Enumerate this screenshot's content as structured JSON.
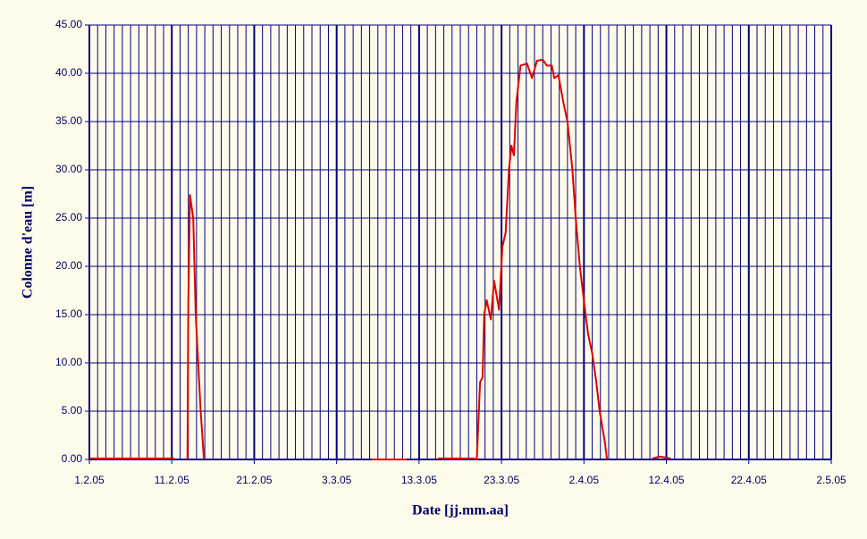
{
  "chart_data": {
    "type": "line",
    "x_label": "Date [jj.mm.aa]",
    "y_label": "Colonne d'eau [m]",
    "xlim": [
      0,
      90
    ],
    "xticks": [
      {
        "value": 0,
        "label": "1.2.05"
      },
      {
        "value": 10,
        "label": "11.2.05"
      },
      {
        "value": 20,
        "label": "21.2.05"
      },
      {
        "value": 30,
        "label": "3.3.05"
      },
      {
        "value": 40,
        "label": "13.3.05"
      },
      {
        "value": 50,
        "label": "23.3.05"
      },
      {
        "value": 60,
        "label": "2.4.05"
      },
      {
        "value": 70,
        "label": "12.4.05"
      },
      {
        "value": 80,
        "label": "22.4.05"
      },
      {
        "value": 90,
        "label": "2.5.05"
      }
    ],
    "x_minor_grid_step": 1,
    "ylim": [
      0,
      45
    ],
    "yticks": [
      {
        "value": 0,
        "label": "0.00"
      },
      {
        "value": 5,
        "label": "5.00"
      },
      {
        "value": 10,
        "label": "10.00"
      },
      {
        "value": 15,
        "label": "15.00"
      },
      {
        "value": 20,
        "label": "20.00"
      },
      {
        "value": 25,
        "label": "25.00"
      },
      {
        "value": 30,
        "label": "30.00"
      },
      {
        "value": 35,
        "label": "35.00"
      },
      {
        "value": 40,
        "label": "40.00"
      },
      {
        "value": 45,
        "label": "45.00"
      }
    ],
    "grid": true,
    "grid_color": "#000080",
    "x": [
      0,
      10.3,
      11,
      11.9,
      12.0,
      12.2,
      12.6,
      12.9,
      13.2,
      13.5,
      13.9,
      14.5,
      34.2,
      38.5,
      40,
      42.3,
      46.6,
      47.0,
      47.4,
      47.7,
      47.9,
      48.2,
      48.7,
      49.1,
      49.7,
      50.1,
      50.5,
      50.9,
      51.2,
      51.5,
      51.8,
      52.3,
      53.1,
      53.7,
      54.3,
      55.0,
      55.5,
      56.1,
      56.4,
      56.9,
      57.5,
      58.0,
      58.6,
      59.0,
      59.5,
      60.2,
      60.5,
      61.0,
      61.5,
      61.9,
      62.5,
      62.8,
      65,
      68.3,
      69.2,
      70.5
    ],
    "series": [
      {
        "color": "#e00000",
        "values": [
          0.1,
          0.1,
          null,
          0,
          16,
          27.4,
          25,
          15,
          10,
          5,
          0,
          null,
          0,
          0,
          null,
          0.1,
          0.1,
          0,
          8,
          8.5,
          15,
          16.5,
          14.5,
          18.5,
          15.5,
          22,
          23.5,
          30,
          32.5,
          31.5,
          37,
          40.8,
          41,
          39.5,
          41.3,
          41.4,
          40.8,
          40.8,
          39.5,
          39.8,
          37,
          35,
          30,
          25,
          20,
          15,
          13,
          11,
          8,
          5,
          2,
          0,
          null,
          0.1,
          0.3,
          0.1
        ]
      }
    ]
  }
}
